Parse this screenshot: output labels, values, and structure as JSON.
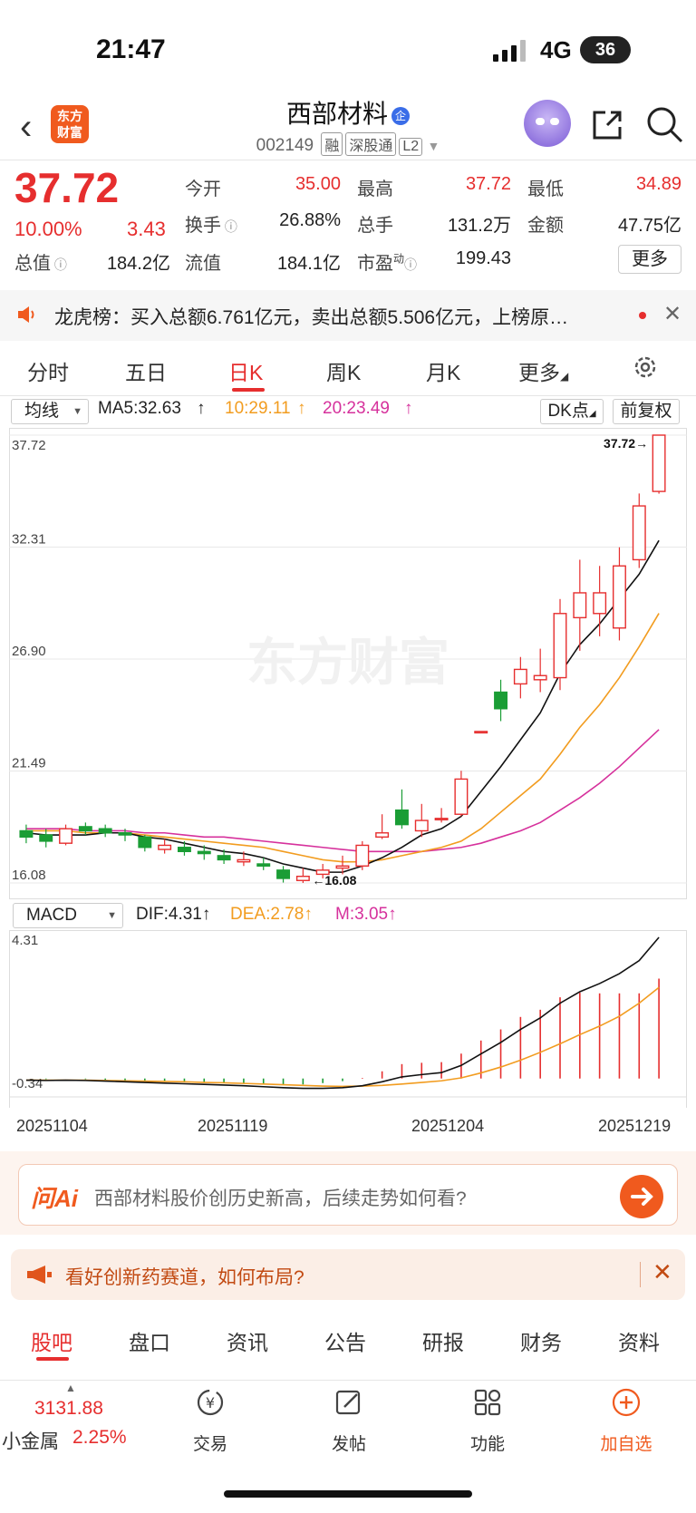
{
  "status": {
    "time": "21:47",
    "network": "4G",
    "battery": "36"
  },
  "header": {
    "logo_text": "东方\n财富",
    "stock_name": "西部材料",
    "code": "002149",
    "badges": [
      "融",
      "深股通",
      "L2"
    ],
    "name_badge": "企"
  },
  "quote": {
    "price": "37.72",
    "pct": "10.00%",
    "change": "3.43",
    "fields": [
      {
        "label": "今开",
        "value": "35.00",
        "color": "#e62e2e"
      },
      {
        "label": "最高",
        "value": "37.72",
        "color": "#e62e2e"
      },
      {
        "label": "最低",
        "value": "34.89",
        "color": "#e62e2e"
      },
      {
        "label": "换手",
        "value": "26.88%",
        "color": "#222"
      },
      {
        "label": "总手",
        "value": "131.2万",
        "color": "#222"
      },
      {
        "label": "金额",
        "value": "47.75亿",
        "color": "#222"
      },
      {
        "label": "总值",
        "value": "184.2亿",
        "color": "#222"
      },
      {
        "label": "流值",
        "value": "184.1亿",
        "color": "#222"
      },
      {
        "label": "市盈",
        "value": "199.43",
        "color": "#222"
      }
    ],
    "pe_sup": "动",
    "more": "更多"
  },
  "lhb": {
    "text": "龙虎榜：买入总额6.761亿元，卖出总额5.506亿元，上榜原…"
  },
  "ktabs": [
    "分时",
    "五日",
    "日K",
    "周K",
    "月K",
    "更多"
  ],
  "ma": {
    "selector": "均线",
    "ma5": "MA5:32.63",
    "ma10": "10:29.11",
    "ma20": "20:23.49",
    "dk": "DK点",
    "adjust": "前复权"
  },
  "chart_data": [
    {
      "type": "candlestick",
      "y_ticks": [
        "37.72",
        "32.31",
        "26.90",
        "21.49",
        "16.08"
      ],
      "ylim": [
        16.08,
        37.72
      ],
      "high_label": "37.72",
      "low_label": "16.08",
      "watermark": "东方财富",
      "candles": [
        {
          "o": 18.6,
          "c": 18.3,
          "h": 18.9,
          "l": 18.0,
          "up": false
        },
        {
          "o": 18.4,
          "c": 18.1,
          "h": 18.7,
          "l": 17.8,
          "up": false
        },
        {
          "o": 18.0,
          "c": 18.7,
          "h": 18.9,
          "l": 17.9,
          "up": true
        },
        {
          "o": 18.8,
          "c": 18.6,
          "h": 19.0,
          "l": 18.4,
          "up": false
        },
        {
          "o": 18.7,
          "c": 18.5,
          "h": 18.9,
          "l": 18.3,
          "up": false
        },
        {
          "o": 18.5,
          "c": 18.4,
          "h": 18.7,
          "l": 18.1,
          "up": false
        },
        {
          "o": 18.3,
          "c": 17.8,
          "h": 18.4,
          "l": 17.6,
          "up": false
        },
        {
          "o": 17.7,
          "c": 17.9,
          "h": 18.2,
          "l": 17.5,
          "up": true
        },
        {
          "o": 17.8,
          "c": 17.6,
          "h": 18.1,
          "l": 17.4,
          "up": false
        },
        {
          "o": 17.6,
          "c": 17.5,
          "h": 17.9,
          "l": 17.2,
          "up": false
        },
        {
          "o": 17.4,
          "c": 17.2,
          "h": 17.7,
          "l": 17.0,
          "up": false
        },
        {
          "o": 17.1,
          "c": 17.2,
          "h": 17.6,
          "l": 16.9,
          "up": true
        },
        {
          "o": 17.0,
          "c": 16.9,
          "h": 17.3,
          "l": 16.7,
          "up": false
        },
        {
          "o": 16.7,
          "c": 16.3,
          "h": 16.9,
          "l": 16.1,
          "up": false
        },
        {
          "o": 16.2,
          "c": 16.4,
          "h": 16.8,
          "l": 16.08,
          "up": true
        },
        {
          "o": 16.5,
          "c": 16.7,
          "h": 17.0,
          "l": 16.3,
          "up": true
        },
        {
          "o": 16.8,
          "c": 16.9,
          "h": 17.4,
          "l": 16.5,
          "up": true
        },
        {
          "o": 16.9,
          "c": 17.9,
          "h": 18.1,
          "l": 16.7,
          "up": true
        },
        {
          "o": 18.3,
          "c": 18.5,
          "h": 19.4,
          "l": 18.2,
          "up": true
        },
        {
          "o": 19.6,
          "c": 18.9,
          "h": 20.6,
          "l": 18.7,
          "up": false
        },
        {
          "o": 18.6,
          "c": 19.1,
          "h": 19.9,
          "l": 18.3,
          "up": true
        },
        {
          "o": 19.2,
          "c": 19.2,
          "h": 19.7,
          "l": 19.0,
          "up": true
        },
        {
          "o": 19.4,
          "c": 21.1,
          "h": 21.5,
          "l": 19.3,
          "up": true
        },
        {
          "o": 23.4,
          "c": 23.4,
          "h": 23.4,
          "l": 23.4,
          "up": true
        },
        {
          "o": 25.3,
          "c": 24.5,
          "h": 25.9,
          "l": 23.9,
          "up": false
        },
        {
          "o": 25.7,
          "c": 26.4,
          "h": 27.0,
          "l": 25.0,
          "up": true
        },
        {
          "o": 25.9,
          "c": 26.1,
          "h": 27.4,
          "l": 25.3,
          "up": true
        },
        {
          "o": 26.0,
          "c": 29.1,
          "h": 29.8,
          "l": 25.4,
          "up": true
        },
        {
          "o": 28.9,
          "c": 30.1,
          "h": 31.7,
          "l": 27.3,
          "up": true
        },
        {
          "o": 29.1,
          "c": 30.1,
          "h": 31.4,
          "l": 28.0,
          "up": true
        },
        {
          "o": 28.4,
          "c": 31.4,
          "h": 32.3,
          "l": 27.8,
          "up": true
        },
        {
          "o": 31.7,
          "c": 34.3,
          "h": 34.9,
          "l": 31.3,
          "up": true
        },
        {
          "o": 35.0,
          "c": 37.72,
          "h": 37.72,
          "l": 34.89,
          "up": true
        }
      ],
      "ma5": [
        18.5,
        18.4,
        18.4,
        18.4,
        18.5,
        18.5,
        18.3,
        18.2,
        18.0,
        17.8,
        17.6,
        17.5,
        17.3,
        17.0,
        16.8,
        16.6,
        16.6,
        16.9,
        17.3,
        17.8,
        18.4,
        18.7,
        19.3,
        20.5,
        21.7,
        23.0,
        24.3,
        26.2,
        27.6,
        28.6,
        29.8,
        31.0,
        32.63
      ],
      "ma10": [
        18.6,
        18.6,
        18.6,
        18.5,
        18.5,
        18.5,
        18.4,
        18.3,
        18.2,
        18.1,
        18.0,
        17.9,
        17.8,
        17.6,
        17.4,
        17.2,
        17.1,
        17.1,
        17.2,
        17.4,
        17.6,
        17.8,
        18.1,
        18.7,
        19.5,
        20.3,
        21.1,
        22.3,
        23.6,
        24.7,
        26.0,
        27.5,
        29.11
      ],
      "ma20": [
        18.7,
        18.7,
        18.7,
        18.6,
        18.6,
        18.6,
        18.5,
        18.5,
        18.4,
        18.3,
        18.3,
        18.2,
        18.1,
        18.0,
        17.9,
        17.8,
        17.7,
        17.6,
        17.6,
        17.6,
        17.6,
        17.7,
        17.8,
        18.0,
        18.3,
        18.6,
        19.0,
        19.6,
        20.2,
        20.9,
        21.7,
        22.6,
        23.49
      ]
    },
    {
      "type": "macd",
      "selector": "MACD",
      "dif_label": "DIF:4.31",
      "dea_label": "DEA:2.78",
      "m_label": "M:3.05",
      "y_ticks": [
        "4.31",
        "-0.34"
      ],
      "ylim": [
        -0.34,
        4.31
      ],
      "dif": [
        -0.05,
        -0.06,
        -0.05,
        -0.06,
        -0.08,
        -0.1,
        -0.12,
        -0.14,
        -0.16,
        -0.18,
        -0.2,
        -0.22,
        -0.25,
        -0.28,
        -0.3,
        -0.3,
        -0.28,
        -0.22,
        -0.1,
        0.05,
        0.12,
        0.18,
        0.4,
        0.75,
        1.1,
        1.5,
        1.85,
        2.3,
        2.65,
        2.9,
        3.2,
        3.6,
        4.31
      ],
      "dea": [
        -0.05,
        -0.05,
        -0.05,
        -0.05,
        -0.06,
        -0.07,
        -0.08,
        -0.09,
        -0.1,
        -0.12,
        -0.13,
        -0.15,
        -0.17,
        -0.19,
        -0.21,
        -0.23,
        -0.24,
        -0.23,
        -0.21,
        -0.17,
        -0.12,
        -0.07,
        0.02,
        0.17,
        0.35,
        0.56,
        0.8,
        1.06,
        1.34,
        1.6,
        1.9,
        2.3,
        2.78
      ],
      "hist": [
        0,
        -0.02,
        0,
        -0.02,
        -0.04,
        -0.06,
        -0.08,
        -0.1,
        -0.12,
        -0.12,
        -0.14,
        -0.14,
        -0.16,
        -0.18,
        -0.18,
        -0.14,
        -0.08,
        0.02,
        0.22,
        0.44,
        0.48,
        0.5,
        0.76,
        1.16,
        1.5,
        1.88,
        2.1,
        2.48,
        2.62,
        2.6,
        2.6,
        2.6,
        3.05
      ],
      "dates": [
        "20251104",
        "20251119",
        "20251204",
        "20251219"
      ]
    }
  ],
  "ai": {
    "logo": "问Ai",
    "prompt": "西部材料股价创历史新高，后续走势如何看?"
  },
  "promo": {
    "text": "看好创新药赛道，如何布局?"
  },
  "btabs": [
    "股吧",
    "盘口",
    "资讯",
    "公告",
    "研报",
    "财务",
    "资料"
  ],
  "bottomnav": {
    "index_value": "3131.88",
    "index_name": "小金属",
    "index_pct": "2.25%",
    "items": [
      "交易",
      "发帖",
      "功能",
      "加自选"
    ]
  }
}
